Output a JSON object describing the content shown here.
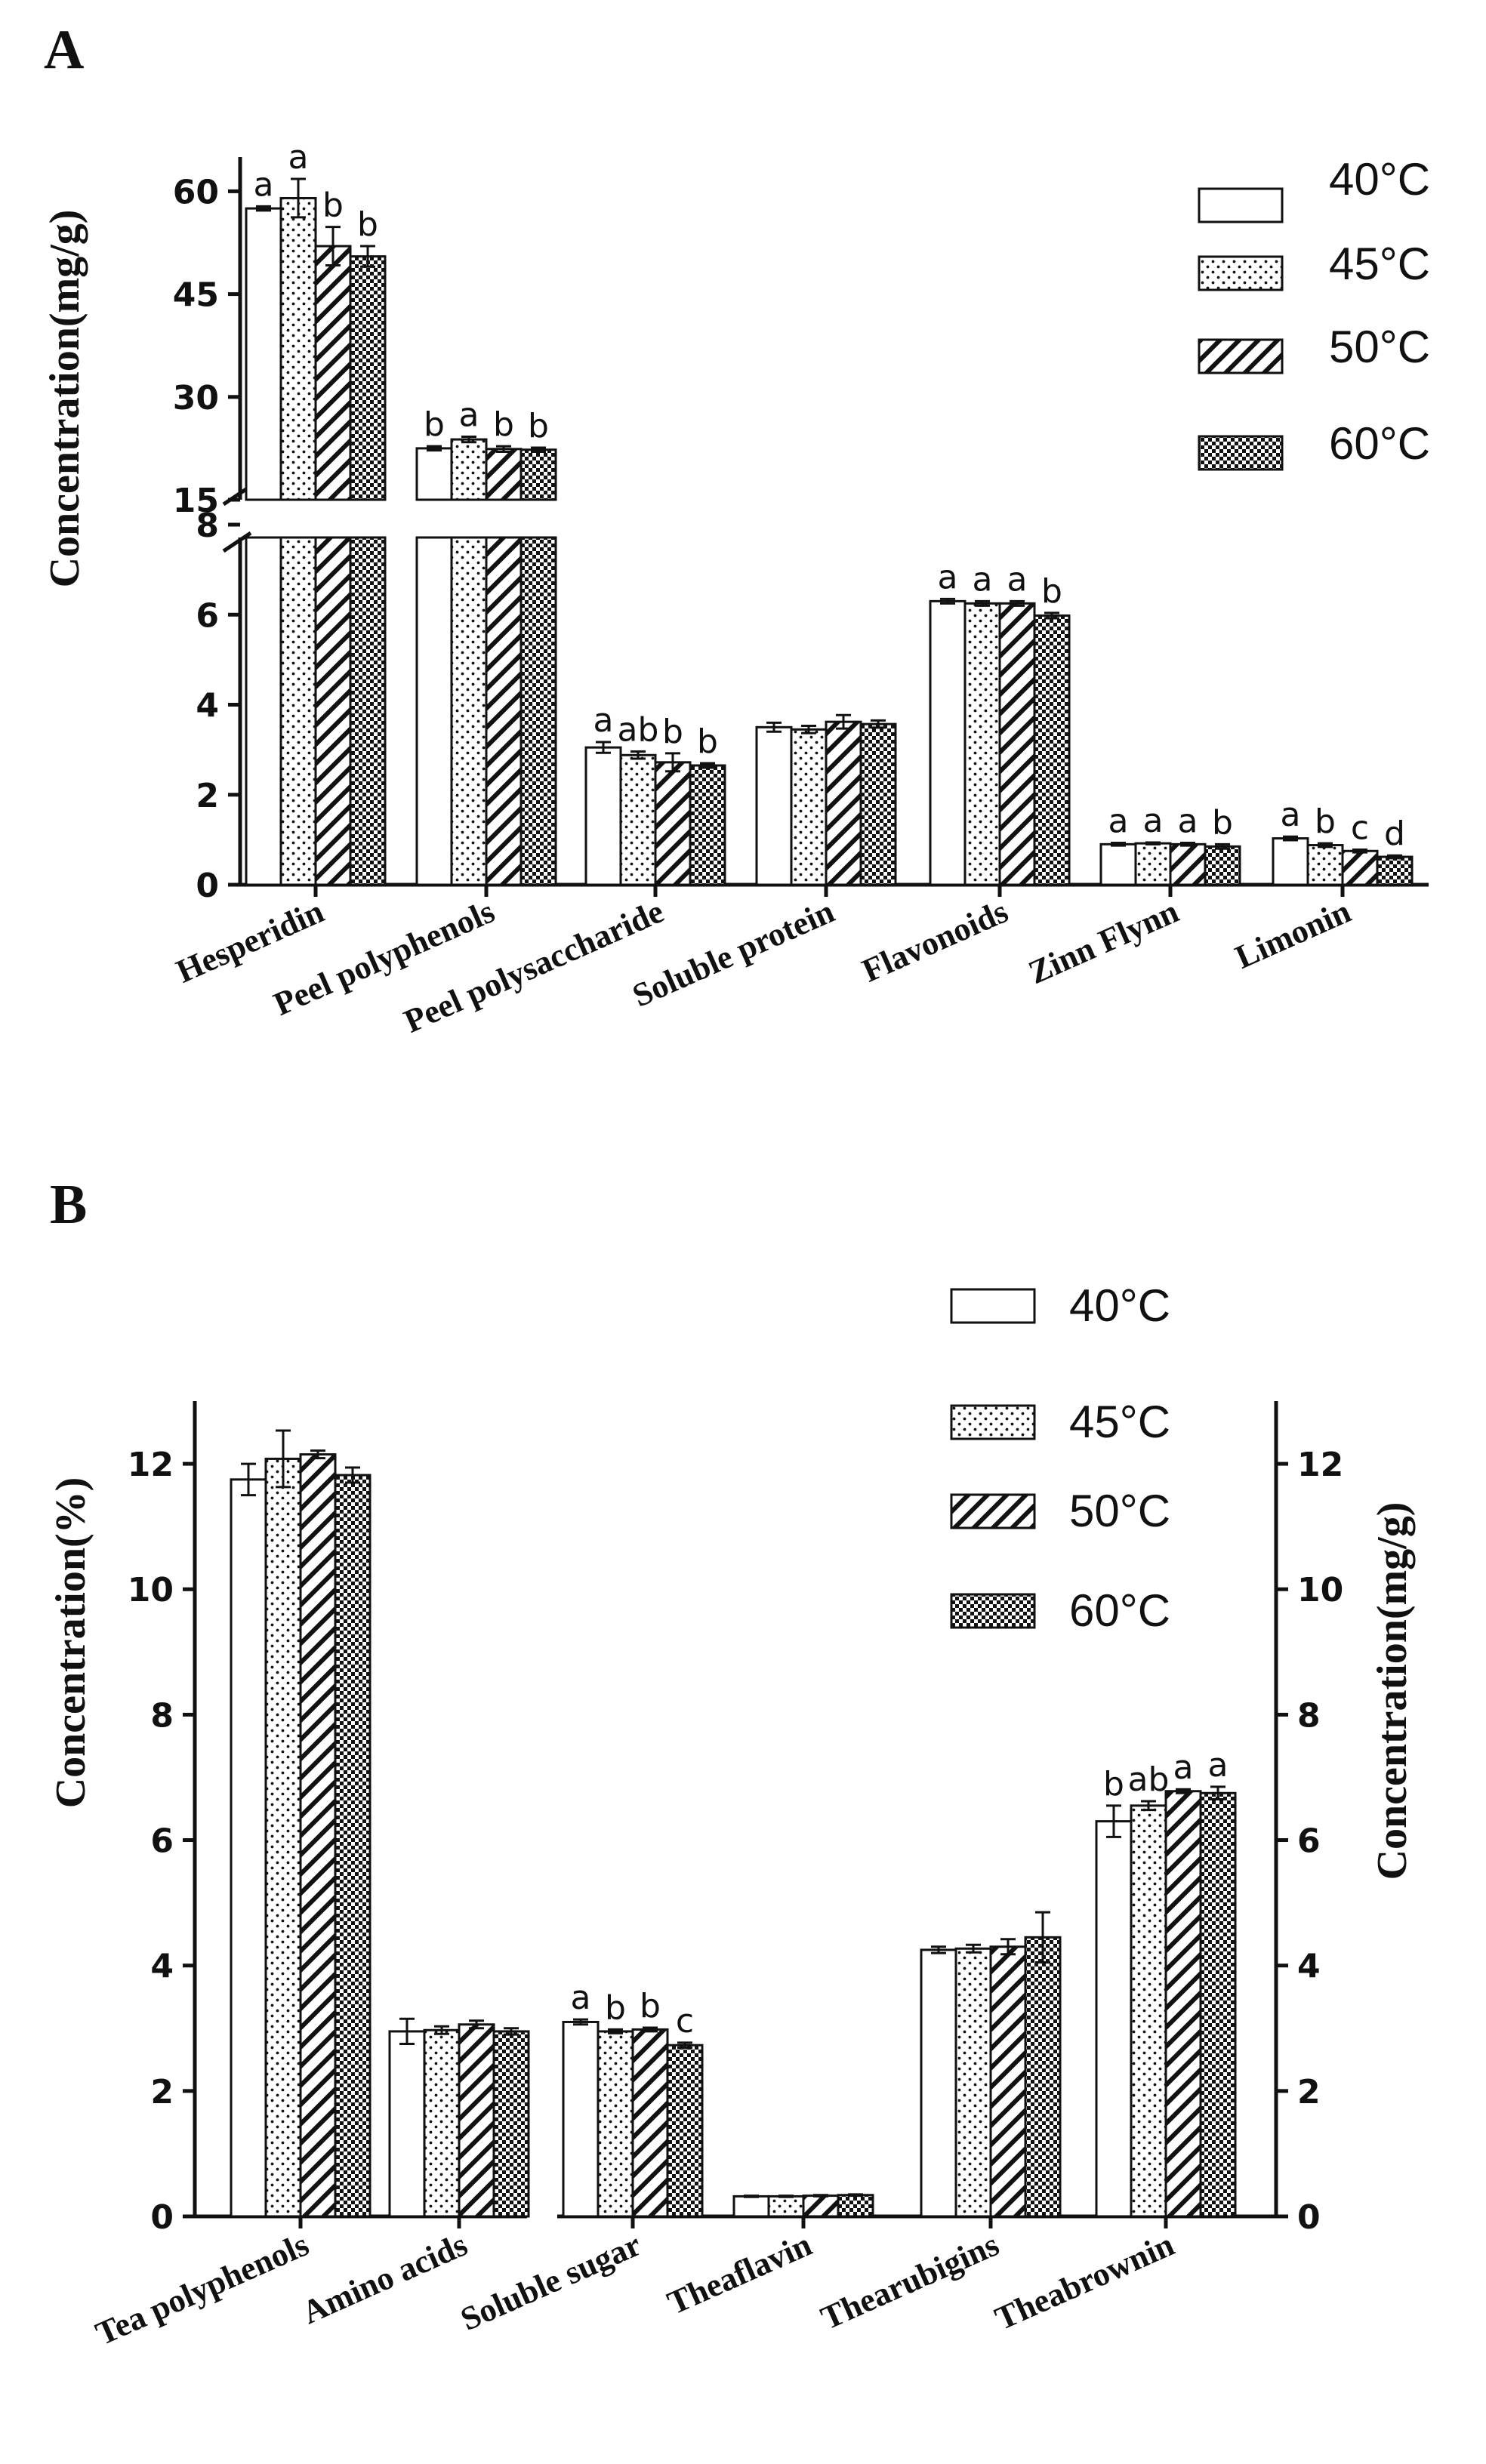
{
  "chart_data": [
    {
      "panel_label": "A",
      "type": "bar",
      "ylabel": "Concentration(mg/g)",
      "y_axis": "broken",
      "ylim_lower": [
        0,
        8
      ],
      "ylim_upper": [
        15,
        65
      ],
      "yticks_lower": [
        0,
        2,
        4,
        6,
        8
      ],
      "yticks_upper": [
        15,
        30,
        45,
        60
      ],
      "legend": [
        "40°C",
        "45°C",
        "50°C",
        "60°C"
      ],
      "legend_position": "top-right",
      "categories": [
        "Hesperidin",
        "Peel polyphenols",
        "Peel polysaccharide",
        "Soluble protein",
        "Flavonoids",
        "Zinn Flynn",
        "Limonin"
      ],
      "series": [
        {
          "name": "40°C",
          "values": [
            57.5,
            22.5,
            3.05,
            3.5,
            6.3,
            0.9,
            1.03
          ]
        },
        {
          "name": "45°C",
          "values": [
            59.0,
            23.8,
            2.88,
            3.45,
            6.25,
            0.92,
            0.88
          ]
        },
        {
          "name": "50°C",
          "values": [
            52.0,
            22.4,
            2.72,
            3.62,
            6.25,
            0.9,
            0.75
          ]
        },
        {
          "name": "60°C",
          "values": [
            50.5,
            22.3,
            2.65,
            3.57,
            5.98,
            0.85,
            0.62
          ]
        }
      ],
      "errors": [
        [
          0.3,
          0.3,
          0.12,
          0.1,
          0.05,
          0.03,
          0.04
        ],
        [
          2.8,
          0.4,
          0.08,
          0.08,
          0.05,
          0.02,
          0.04
        ],
        [
          2.8,
          0.4,
          0.2,
          0.15,
          0.05,
          0.03,
          0.03
        ],
        [
          1.5,
          0.3,
          0.05,
          0.08,
          0.06,
          0.05,
          0.03
        ]
      ],
      "significance": [
        [
          "a",
          "a",
          "b",
          "b"
        ],
        [
          "b",
          "a",
          "b",
          "b"
        ],
        [
          "a",
          "ab",
          "b",
          "b"
        ],
        [
          "",
          "",
          "",
          ""
        ],
        [
          "a",
          "a",
          "a",
          "b"
        ],
        [
          "a",
          "a",
          "a",
          "b"
        ],
        [
          "a",
          "b",
          "c",
          "d"
        ]
      ]
    },
    {
      "panel_label": "B",
      "type": "bar",
      "ylabel": "Concentration(%)",
      "ylabel_right": "Concentration(mg/g)",
      "ylim": [
        0,
        13
      ],
      "yticks": [
        0,
        2,
        4,
        6,
        8,
        10,
        12
      ],
      "legend": [
        "40°C",
        "45°C",
        "50°C",
        "60°C"
      ],
      "legend_position": "top-right",
      "categories": [
        "Tea polyphenols",
        "Amino acids",
        "Soluble sugar",
        "Theaflavin",
        "Thearubigins",
        "Theabrownin"
      ],
      "series": [
        {
          "name": "40°C",
          "values": [
            11.75,
            2.95,
            3.1,
            0.32,
            4.25,
            6.3
          ]
        },
        {
          "name": "45°C",
          "values": [
            12.08,
            2.97,
            2.95,
            0.32,
            4.27,
            6.55
          ]
        },
        {
          "name": "50°C",
          "values": [
            12.15,
            3.06,
            2.98,
            0.33,
            4.3,
            6.78
          ]
        },
        {
          "name": "60°C",
          "values": [
            11.82,
            2.95,
            2.73,
            0.34,
            4.45,
            6.75
          ]
        }
      ],
      "errors": [
        [
          0.25,
          0.2,
          0.04,
          0.01,
          0.05,
          0.25
        ],
        [
          0.45,
          0.06,
          0.03,
          0.01,
          0.06,
          0.07
        ],
        [
          0.06,
          0.06,
          0.03,
          0.01,
          0.12,
          0.03
        ],
        [
          0.12,
          0.05,
          0.04,
          0.01,
          0.4,
          0.1
        ]
      ],
      "significance": [
        [
          "",
          "",
          "",
          ""
        ],
        [
          "",
          "",
          "",
          ""
        ],
        [
          "a",
          "b",
          "b",
          "c"
        ],
        [
          "",
          "",
          "",
          ""
        ],
        [
          "",
          "",
          "",
          ""
        ],
        [
          "b",
          "ab",
          "a",
          "a"
        ]
      ]
    }
  ]
}
